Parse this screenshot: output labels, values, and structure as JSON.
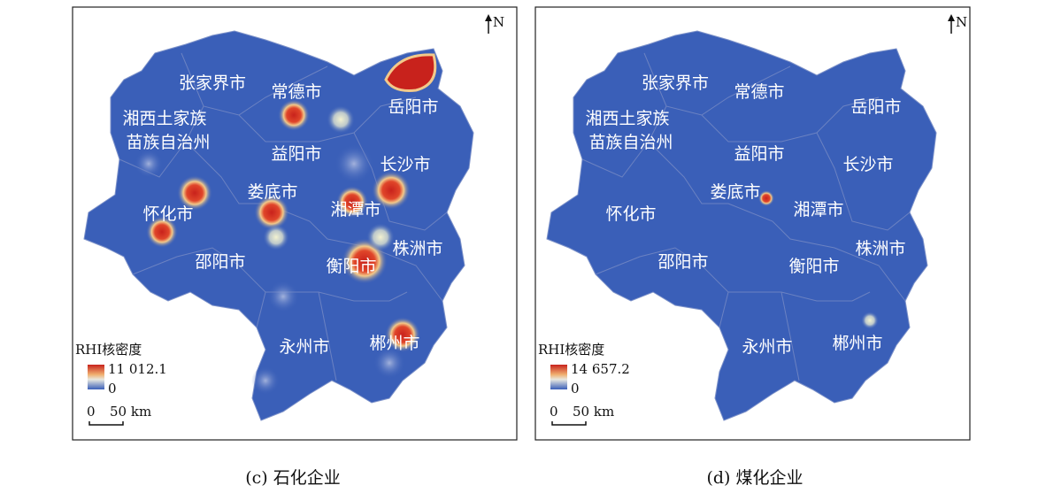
{
  "panels": [
    {
      "north": "N",
      "legend_title": "RHI核密度",
      "legend_max": "11 012.1",
      "legend_min": "0",
      "scale_zero": "0",
      "scale_label": "50 km",
      "caption": "(c) 石化企业",
      "cities": [
        "张家界市",
        "常德市",
        "岳阳市",
        "湘西土家族",
        "苗族自治州",
        "益阳市",
        "长沙市",
        "娄底市",
        "湘潭市",
        "怀化市",
        "株洲市",
        "邵阳市",
        "衡阳市",
        "永州市",
        "郴州市"
      ]
    },
    {
      "north": "N",
      "legend_title": "RHI核密度",
      "legend_max": "14 657.2",
      "legend_min": "0",
      "scale_zero": "0",
      "scale_label": "50 km",
      "caption": "(d) 煤化企业",
      "cities": [
        "张家界市",
        "常德市",
        "岳阳市",
        "湘西土家族",
        "苗族自治州",
        "益阳市",
        "长沙市",
        "娄底市",
        "湘潭市",
        "怀化市",
        "株洲市",
        "邵阳市",
        "衡阳市",
        "永州市",
        "郴州市"
      ]
    }
  ]
}
